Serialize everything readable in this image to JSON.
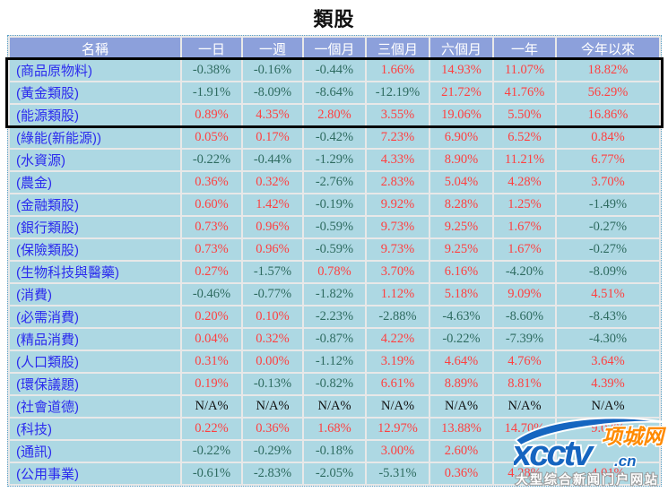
{
  "page": {
    "title": "類股"
  },
  "table": {
    "columns": [
      "名稱",
      "一日",
      "一週",
      "一個月",
      "三個月",
      "六個月",
      "一年",
      "今年以來"
    ],
    "rows": [
      {
        "name": "(商品原物料)",
        "values": [
          "-0.38%",
          "-0.16%",
          "-0.44%",
          "1.66%",
          "14.93%",
          "11.07%",
          "18.82%"
        ],
        "highlighted": true
      },
      {
        "name": "(黃金類股)",
        "values": [
          "-1.91%",
          "-8.09%",
          "-8.64%",
          "-12.19%",
          "21.72%",
          "41.76%",
          "56.29%"
        ],
        "highlighted": true
      },
      {
        "name": "(能源類股)",
        "values": [
          "0.89%",
          "4.35%",
          "2.80%",
          "3.55%",
          "19.06%",
          "5.50%",
          "16.86%"
        ],
        "highlighted": true
      },
      {
        "name": "(綠能(新能源))",
        "values": [
          "0.05%",
          "0.17%",
          "-0.42%",
          "7.23%",
          "6.90%",
          "6.52%",
          "0.84%"
        ],
        "highlighted": false
      },
      {
        "name": "(水資源)",
        "values": [
          "-0.22%",
          "-0.44%",
          "-1.29%",
          "4.33%",
          "8.90%",
          "11.21%",
          "6.77%"
        ],
        "highlighted": false
      },
      {
        "name": "(農金)",
        "values": [
          "0.36%",
          "0.32%",
          "-2.76%",
          "2.83%",
          "5.04%",
          "4.28%",
          "3.70%"
        ],
        "highlighted": false
      },
      {
        "name": "(金融類股)",
        "values": [
          "0.60%",
          "1.42%",
          "-0.19%",
          "9.92%",
          "8.28%",
          "1.25%",
          "-1.49%"
        ],
        "highlighted": false
      },
      {
        "name": "(銀行類股)",
        "values": [
          "0.73%",
          "0.96%",
          "-0.59%",
          "9.73%",
          "9.25%",
          "1.67%",
          "-0.27%"
        ],
        "highlighted": false
      },
      {
        "name": "(保險類股)",
        "values": [
          "0.73%",
          "0.96%",
          "-0.59%",
          "9.73%",
          "9.25%",
          "1.67%",
          "-0.27%"
        ],
        "highlighted": false
      },
      {
        "name": "(生物科技與醫藥)",
        "values": [
          "0.27%",
          "-1.57%",
          "0.78%",
          "3.70%",
          "6.16%",
          "-4.20%",
          "-8.09%"
        ],
        "highlighted": false
      },
      {
        "name": "(消費)",
        "values": [
          "-0.46%",
          "-0.77%",
          "-1.82%",
          "1.12%",
          "5.18%",
          "9.09%",
          "4.51%"
        ],
        "highlighted": false
      },
      {
        "name": "(必需消費)",
        "values": [
          "0.20%",
          "0.10%",
          "-2.23%",
          "-2.88%",
          "-4.63%",
          "-8.60%",
          "-8.43%"
        ],
        "highlighted": false
      },
      {
        "name": "(精品消費)",
        "values": [
          "0.04%",
          "0.32%",
          "-0.87%",
          "4.22%",
          "-0.22%",
          "-7.39%",
          "-4.30%"
        ],
        "highlighted": false
      },
      {
        "name": "(人口類股)",
        "values": [
          "0.31%",
          "0.00%",
          "-1.12%",
          "3.19%",
          "4.64%",
          "4.76%",
          "3.64%"
        ],
        "highlighted": false
      },
      {
        "name": "(環保議題)",
        "values": [
          "0.19%",
          "-0.13%",
          "-0.82%",
          "6.61%",
          "8.89%",
          "8.81%",
          "4.39%"
        ],
        "highlighted": false
      },
      {
        "name": "(社會道德)",
        "values": [
          "N/A%",
          "N/A%",
          "N/A%",
          "N/A%",
          "N/A%",
          "N/A%",
          "N/A%"
        ],
        "highlighted": false
      },
      {
        "name": "(科技)",
        "values": [
          "0.22%",
          "0.36%",
          "1.68%",
          "12.97%",
          "13.88%",
          "14.70%",
          "9.02%"
        ],
        "highlighted": false
      },
      {
        "name": "(通訊)",
        "values": [
          "-0.22%",
          "-0.29%",
          "-0.18%",
          "3.00%",
          "2.60%",
          "",
          ""
        ],
        "highlighted": false
      },
      {
        "name": "(公用事業)",
        "values": [
          "-0.61%",
          "-2.83%",
          "-2.05%",
          "-5.31%",
          "0.36%",
          "4.28%",
          "4.01%"
        ],
        "highlighted": false
      }
    ]
  },
  "colors": {
    "positive": "#FF4040",
    "negative": "#2E6B60",
    "na": "#111111",
    "header_bg": "#8CA0DB",
    "header_text": "#FFFFFF",
    "row_bg": "#ADD8E3",
    "name_text": "#2B2BEE",
    "highlight_border": "#000000",
    "watermark_blue": "#1565C0",
    "watermark_orange": "#FF8A00"
  },
  "watermark": {
    "logo_text": "xcctv",
    "domain_suffix": ".cn",
    "badge": "项城网",
    "tagline": "大型综合新闻门户网站"
  }
}
